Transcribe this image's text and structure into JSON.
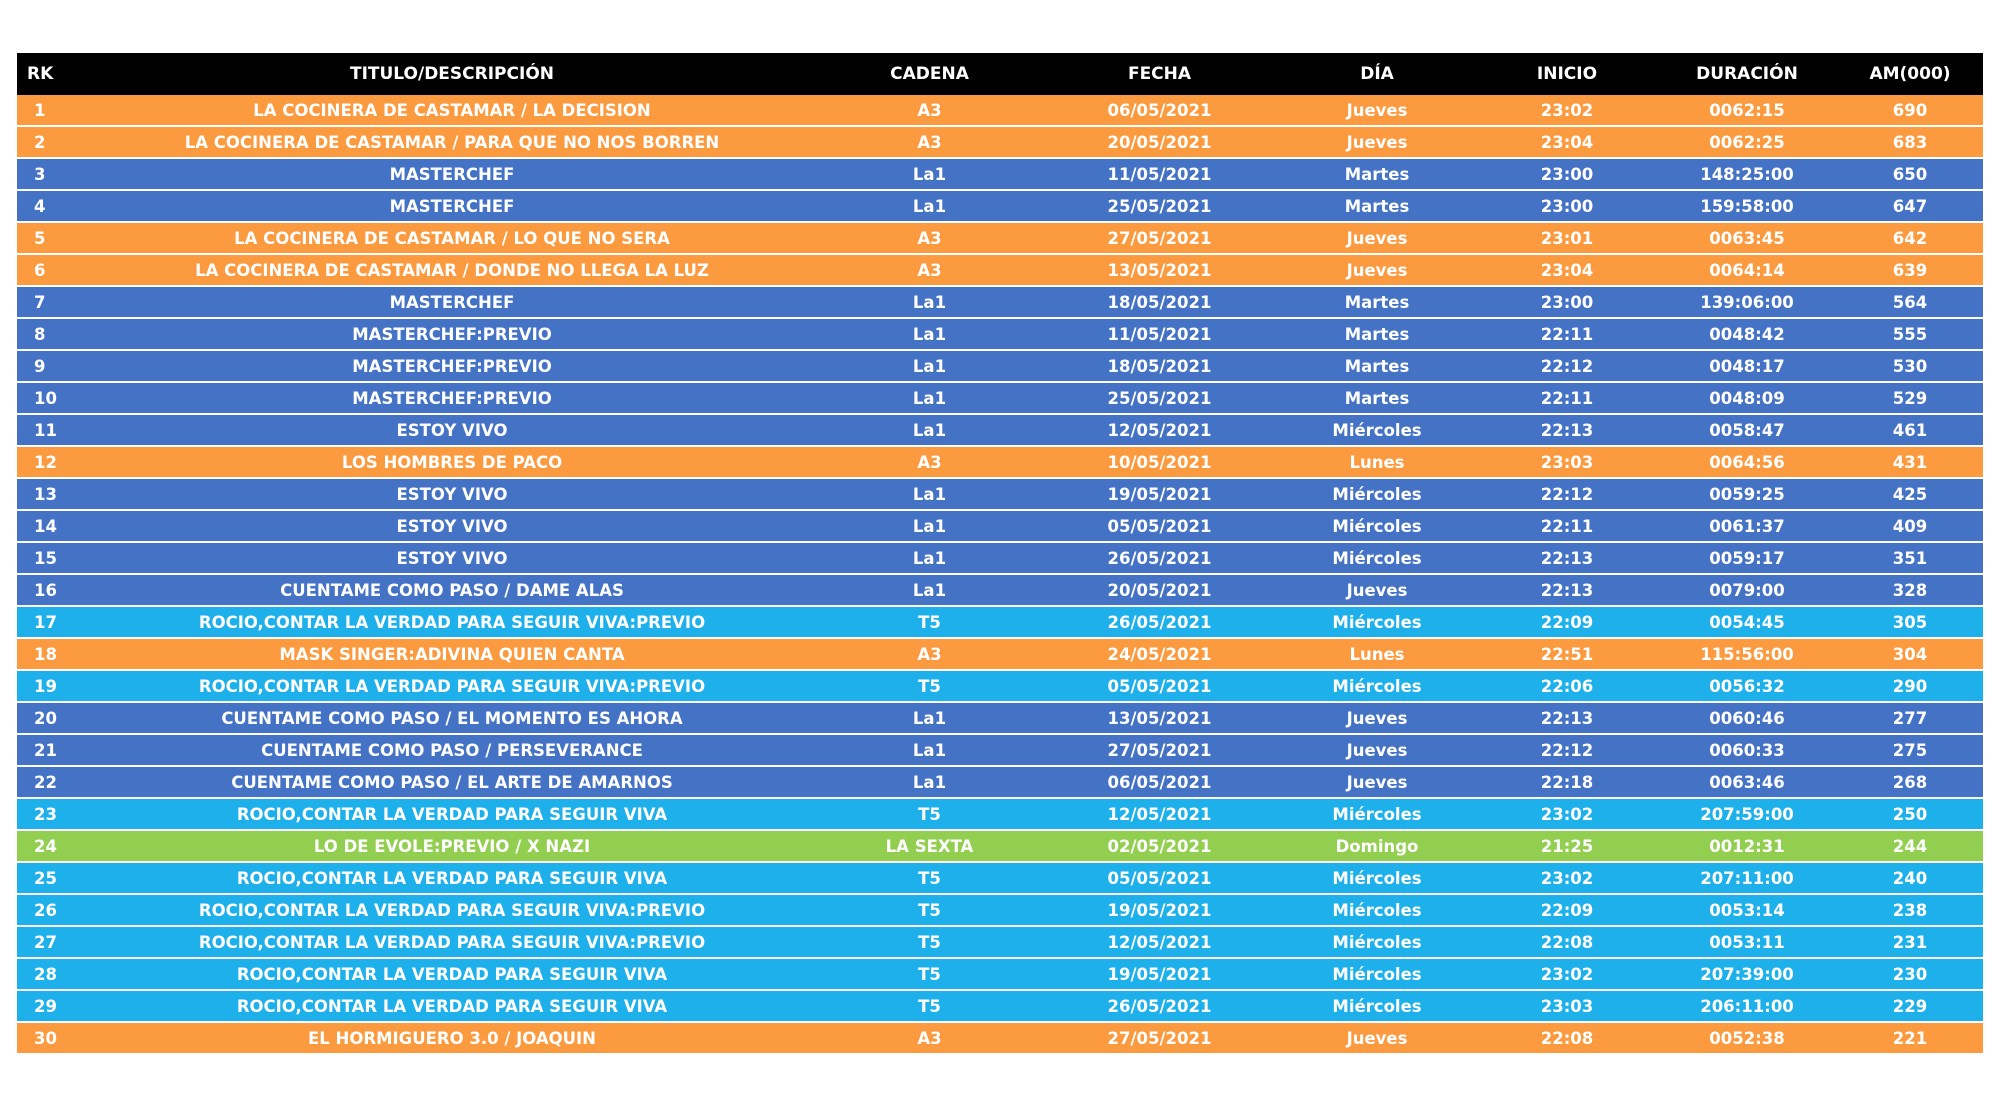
{
  "columns": [
    "RK",
    "TITULO/DESCRIPCIÓN",
    "CADENA",
    "FECHA",
    "DÍA",
    "INICIO",
    "DURACIÓN",
    "AM(000)"
  ],
  "network_colors": {
    "A3": "#fb9a3f",
    "La1": "#4472c4",
    "T5": "#1eb0eb",
    "LA SEXTA": "#92cf50"
  },
  "rows": [
    {
      "rk": "1",
      "title": "LA COCINERA DE CASTAMAR / LA DECISION",
      "channel": "A3",
      "date": "06/05/2021",
      "day": "Jueves",
      "start": "23:02",
      "duration": "0062:15",
      "am": "690"
    },
    {
      "rk": "2",
      "title": "LA COCINERA DE CASTAMAR / PARA QUE NO NOS BORREN",
      "channel": "A3",
      "date": "20/05/2021",
      "day": "Jueves",
      "start": "23:04",
      "duration": "0062:25",
      "am": "683"
    },
    {
      "rk": "3",
      "title": "MASTERCHEF",
      "channel": "La1",
      "date": "11/05/2021",
      "day": "Martes",
      "start": "23:00",
      "duration": "148:25:00",
      "am": "650"
    },
    {
      "rk": "4",
      "title": "MASTERCHEF",
      "channel": "La1",
      "date": "25/05/2021",
      "day": "Martes",
      "start": "23:00",
      "duration": "159:58:00",
      "am": "647"
    },
    {
      "rk": "5",
      "title": "LA COCINERA DE CASTAMAR / LO QUE NO SERA",
      "channel": "A3",
      "date": "27/05/2021",
      "day": "Jueves",
      "start": "23:01",
      "duration": "0063:45",
      "am": "642"
    },
    {
      "rk": "6",
      "title": "LA COCINERA DE CASTAMAR / DONDE NO LLEGA LA LUZ",
      "channel": "A3",
      "date": "13/05/2021",
      "day": "Jueves",
      "start": "23:04",
      "duration": "0064:14",
      "am": "639"
    },
    {
      "rk": "7",
      "title": "MASTERCHEF",
      "channel": "La1",
      "date": "18/05/2021",
      "day": "Martes",
      "start": "23:00",
      "duration": "139:06:00",
      "am": "564"
    },
    {
      "rk": "8",
      "title": "MASTERCHEF:PREVIO",
      "channel": "La1",
      "date": "11/05/2021",
      "day": "Martes",
      "start": "22:11",
      "duration": "0048:42",
      "am": "555"
    },
    {
      "rk": "9",
      "title": "MASTERCHEF:PREVIO",
      "channel": "La1",
      "date": "18/05/2021",
      "day": "Martes",
      "start": "22:12",
      "duration": "0048:17",
      "am": "530"
    },
    {
      "rk": "10",
      "title": "MASTERCHEF:PREVIO",
      "channel": "La1",
      "date": "25/05/2021",
      "day": "Martes",
      "start": "22:11",
      "duration": "0048:09",
      "am": "529"
    },
    {
      "rk": "11",
      "title": "ESTOY VIVO",
      "channel": "La1",
      "date": "12/05/2021",
      "day": "Miércoles",
      "start": "22:13",
      "duration": "0058:47",
      "am": "461"
    },
    {
      "rk": "12",
      "title": "LOS HOMBRES DE PACO",
      "channel": "A3",
      "date": "10/05/2021",
      "day": "Lunes",
      "start": "23:03",
      "duration": "0064:56",
      "am": "431"
    },
    {
      "rk": "13",
      "title": "ESTOY VIVO",
      "channel": "La1",
      "date": "19/05/2021",
      "day": "Miércoles",
      "start": "22:12",
      "duration": "0059:25",
      "am": "425"
    },
    {
      "rk": "14",
      "title": "ESTOY VIVO",
      "channel": "La1",
      "date": "05/05/2021",
      "day": "Miércoles",
      "start": "22:11",
      "duration": "0061:37",
      "am": "409"
    },
    {
      "rk": "15",
      "title": "ESTOY VIVO",
      "channel": "La1",
      "date": "26/05/2021",
      "day": "Miércoles",
      "start": "22:13",
      "duration": "0059:17",
      "am": "351"
    },
    {
      "rk": "16",
      "title": "CUENTAME COMO PASO / DAME ALAS",
      "channel": "La1",
      "date": "20/05/2021",
      "day": "Jueves",
      "start": "22:13",
      "duration": "0079:00",
      "am": "328"
    },
    {
      "rk": "17",
      "title": "ROCIO,CONTAR LA VERDAD PARA SEGUIR VIVA:PREVIO",
      "channel": "T5",
      "date": "26/05/2021",
      "day": "Miércoles",
      "start": "22:09",
      "duration": "0054:45",
      "am": "305"
    },
    {
      "rk": "18",
      "title": "MASK SINGER:ADIVINA QUIEN CANTA",
      "channel": "A3",
      "date": "24/05/2021",
      "day": "Lunes",
      "start": "22:51",
      "duration": "115:56:00",
      "am": "304"
    },
    {
      "rk": "19",
      "title": "ROCIO,CONTAR LA VERDAD PARA SEGUIR VIVA:PREVIO",
      "channel": "T5",
      "date": "05/05/2021",
      "day": "Miércoles",
      "start": "22:06",
      "duration": "0056:32",
      "am": "290"
    },
    {
      "rk": "20",
      "title": "CUENTAME COMO PASO / EL MOMENTO ES AHORA",
      "channel": "La1",
      "date": "13/05/2021",
      "day": "Jueves",
      "start": "22:13",
      "duration": "0060:46",
      "am": "277"
    },
    {
      "rk": "21",
      "title": "CUENTAME COMO PASO / PERSEVERANCE",
      "channel": "La1",
      "date": "27/05/2021",
      "day": "Jueves",
      "start": "22:12",
      "duration": "0060:33",
      "am": "275"
    },
    {
      "rk": "22",
      "title": "CUENTAME COMO PASO / EL ARTE DE AMARNOS",
      "channel": "La1",
      "date": "06/05/2021",
      "day": "Jueves",
      "start": "22:18",
      "duration": "0063:46",
      "am": "268"
    },
    {
      "rk": "23",
      "title": "ROCIO,CONTAR LA VERDAD PARA SEGUIR VIVA",
      "channel": "T5",
      "date": "12/05/2021",
      "day": "Miércoles",
      "start": "23:02",
      "duration": "207:59:00",
      "am": "250"
    },
    {
      "rk": "24",
      "title": "LO DE EVOLE:PREVIO / X NAZI",
      "channel": "LA SEXTA",
      "date": "02/05/2021",
      "day": "Domingo",
      "start": "21:25",
      "duration": "0012:31",
      "am": "244"
    },
    {
      "rk": "25",
      "title": "ROCIO,CONTAR LA VERDAD PARA SEGUIR VIVA",
      "channel": "T5",
      "date": "05/05/2021",
      "day": "Miércoles",
      "start": "23:02",
      "duration": "207:11:00",
      "am": "240"
    },
    {
      "rk": "26",
      "title": "ROCIO,CONTAR LA VERDAD PARA SEGUIR VIVA:PREVIO",
      "channel": "T5",
      "date": "19/05/2021",
      "day": "Miércoles",
      "start": "22:09",
      "duration": "0053:14",
      "am": "238"
    },
    {
      "rk": "27",
      "title": "ROCIO,CONTAR LA VERDAD PARA SEGUIR VIVA:PREVIO",
      "channel": "T5",
      "date": "12/05/2021",
      "day": "Miércoles",
      "start": "22:08",
      "duration": "0053:11",
      "am": "231"
    },
    {
      "rk": "28",
      "title": "ROCIO,CONTAR LA VERDAD PARA SEGUIR VIVA",
      "channel": "T5",
      "date": "19/05/2021",
      "day": "Miércoles",
      "start": "23:02",
      "duration": "207:39:00",
      "am": "230"
    },
    {
      "rk": "29",
      "title": "ROCIO,CONTAR LA VERDAD PARA SEGUIR VIVA",
      "channel": "T5",
      "date": "26/05/2021",
      "day": "Miércoles",
      "start": "23:03",
      "duration": "206:11:00",
      "am": "229"
    },
    {
      "rk": "30",
      "title": "EL HORMIGUERO 3.0 / JOAQUIN",
      "channel": "A3",
      "date": "27/05/2021",
      "day": "Jueves",
      "start": "22:08",
      "duration": "0052:38",
      "am": "221"
    }
  ]
}
